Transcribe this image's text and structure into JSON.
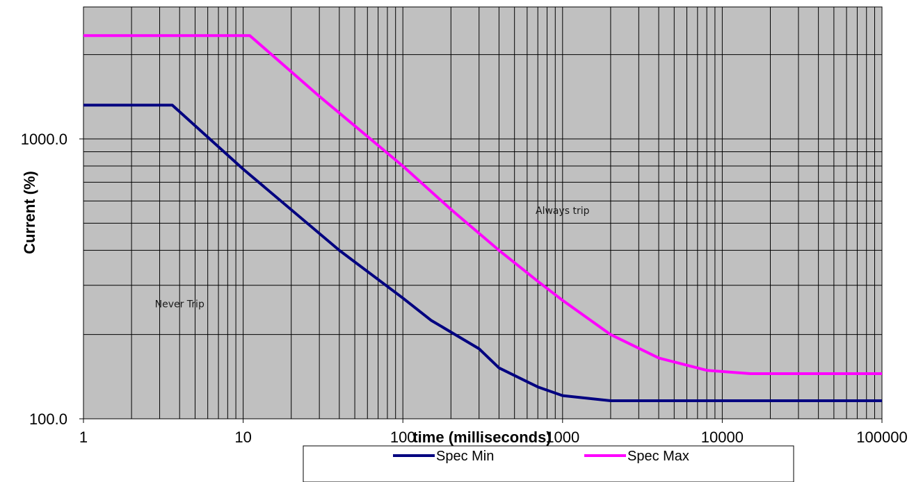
{
  "chart_data": {
    "type": "line",
    "title": "",
    "xlabel": "time (milliseconds)",
    "ylabel": "Current (%)",
    "x_scale": "log",
    "y_scale": "log",
    "xlim": [
      1,
      100000
    ],
    "ylim": [
      100,
      2500
    ],
    "x_ticks": [
      1,
      10,
      100,
      1000,
      10000,
      100000
    ],
    "x_tick_labels": [
      "1",
      "10",
      "100",
      "1000",
      "10000",
      "100000"
    ],
    "y_ticks": [
      100,
      1000
    ],
    "y_tick_labels": [
      "100.0",
      "1000.0"
    ],
    "grid": true,
    "plot_background": "#c0c0c0",
    "legend_position": "bottom",
    "series": [
      {
        "name": "Spec Min",
        "color": "#000080",
        "points": [
          [
            1,
            1320
          ],
          [
            3.6,
            1320
          ],
          [
            10,
            780
          ],
          [
            40,
            400
          ],
          [
            100,
            270
          ],
          [
            150,
            225
          ],
          [
            300,
            178
          ],
          [
            400,
            152
          ],
          [
            700,
            130
          ],
          [
            1000,
            121
          ],
          [
            2000,
            116
          ],
          [
            5000,
            116
          ],
          [
            100000,
            116
          ]
        ]
      },
      {
        "name": "Spec Max",
        "color": "#ff00ff",
        "points": [
          [
            1,
            2340
          ],
          [
            11,
            2340
          ],
          [
            30,
            1420
          ],
          [
            100,
            800
          ],
          [
            200,
            560
          ],
          [
            400,
            400
          ],
          [
            700,
            310
          ],
          [
            1000,
            265
          ],
          [
            2000,
            200
          ],
          [
            4000,
            165
          ],
          [
            8000,
            149
          ],
          [
            15000,
            145
          ],
          [
            100000,
            145
          ]
        ]
      }
    ],
    "annotations": [
      {
        "text": "Always trip",
        "x": 1000,
        "y": 540
      },
      {
        "text": "Never Trip",
        "x": 4,
        "y": 250
      }
    ]
  }
}
